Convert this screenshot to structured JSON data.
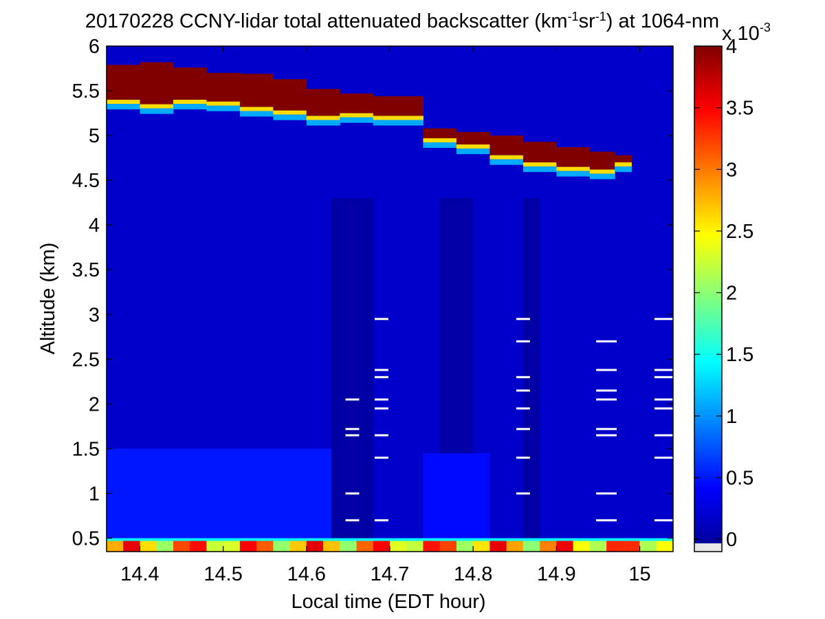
{
  "chart_data": {
    "type": "heatmap",
    "title": {
      "main": "20170228 CCNY-lidar total attenuated backscatter (km",
      "sup1": "-1",
      "mid": "sr",
      "sup2": "-1",
      "tail": ") at 1064-nm"
    },
    "xlabel": "Local time (EDT hour)",
    "ylabel": "Altitude (km)",
    "xlim": [
      14.36,
      15.04
    ],
    "ylim": [
      0.35,
      6.0
    ],
    "x_ticks": [
      14.4,
      14.5,
      14.6,
      14.7,
      14.8,
      14.9,
      15.0
    ],
    "x_tick_labels": [
      "14.4",
      "14.5",
      "14.6",
      "14.7",
      "14.8",
      "14.9",
      "15"
    ],
    "y_ticks": [
      0.5,
      1.0,
      1.5,
      2.0,
      2.5,
      3.0,
      3.5,
      4.0,
      4.5,
      5.0,
      5.5,
      6.0
    ],
    "y_tick_labels": [
      "0.5",
      "1",
      "1.5",
      "2",
      "2.5",
      "3",
      "3.5",
      "4",
      "4.5",
      "5",
      "5.5",
      "6"
    ],
    "colorbar": {
      "colormap": "jet",
      "range": [
        -0.1,
        4.0
      ],
      "ticks": [
        0,
        0.5,
        1,
        1.5,
        2,
        2.5,
        3,
        3.5,
        4
      ],
      "tick_labels": [
        "0",
        "0.5",
        "1",
        "1.5",
        "2",
        "2.5",
        "3",
        "3.5",
        "4"
      ],
      "multiplier_base": "x 10",
      "multiplier_exp": "-3"
    },
    "cloud_layer": {
      "x": [
        14.36,
        14.4,
        14.44,
        14.48,
        14.52,
        14.56,
        14.6,
        14.64,
        14.68,
        14.74,
        14.78,
        14.82,
        14.86,
        14.9,
        14.94,
        14.97
      ],
      "top_km": [
        5.79,
        5.82,
        5.76,
        5.7,
        5.69,
        5.63,
        5.52,
        5.47,
        5.44,
        5.08,
        5.04,
        5.0,
        4.93,
        4.87,
        4.82,
        4.78
      ],
      "base_km": [
        5.4,
        5.35,
        5.4,
        5.38,
        5.32,
        5.28,
        5.22,
        5.25,
        5.22,
        4.97,
        4.9,
        4.78,
        4.7,
        4.65,
        4.62,
        4.7
      ],
      "value": 4.0
    },
    "surface_layer": {
      "top_km": 0.47,
      "value_range": [
        2.0,
        3.6
      ]
    },
    "boundary_layer": {
      "top_km": 1.5,
      "value": 0.5
    },
    "background_value": 0.2,
    "missing_data_streaks": {
      "x_columns": [
        14.655,
        14.69,
        14.86,
        14.96,
        15.03
      ],
      "altitudes_km": [
        0.7,
        1.0,
        1.4,
        1.65,
        1.72,
        1.95,
        2.05,
        2.15,
        2.3,
        2.38,
        2.7,
        2.95
      ]
    }
  }
}
